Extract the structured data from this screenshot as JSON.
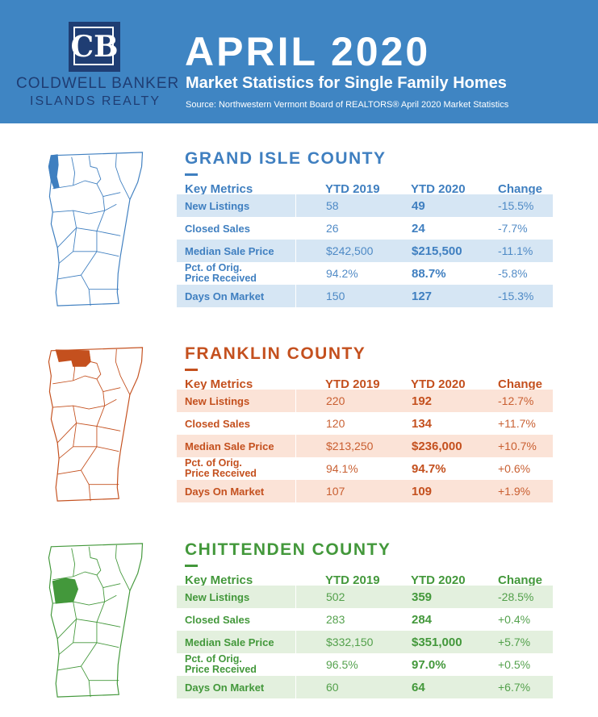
{
  "brand": {
    "monogram": "CB",
    "name_line1": "COLDWELL BANKER",
    "name_line2": "ISLANDS REALTY",
    "navy": "#1f3d73"
  },
  "header": {
    "title": "APRIL 2020",
    "subtitle": "Market Statistics for Single Family Homes",
    "source": "Source: Northwestern Vermont Board of REALTORS® April 2020 Market Statistics",
    "bg_color": "#3f85c3"
  },
  "table_headers": {
    "metric": "Key Metrics",
    "ytd2019": "YTD 2019",
    "ytd2020": "YTD 2020",
    "change": "Change"
  },
  "counties": [
    {
      "name": "GRAND ISLE COUNTY",
      "color": "#3f7fc0",
      "row_bg": "#d6e6f4",
      "map_icon": "vermont-map-grand-isle-highlighted",
      "rows": [
        {
          "label": "New Listings",
          "y2019": "58",
          "y2020": "49",
          "change": "-15.5%"
        },
        {
          "label": "Closed Sales",
          "y2019": "26",
          "y2020": "24",
          "change": "-7.7%"
        },
        {
          "label": "Median Sale Price",
          "y2019": "$242,500",
          "y2020": "$215,500",
          "change": "-11.1%"
        },
        {
          "label": "Pct. of Orig.",
          "label2": "Price Received",
          "y2019": "94.2%",
          "y2020": "88.7%",
          "change": "-5.8%"
        },
        {
          "label": "Days On Market",
          "y2019": "150",
          "y2020": "127",
          "change": "-15.3%"
        }
      ]
    },
    {
      "name": "FRANKLIN COUNTY",
      "color": "#c4501e",
      "row_bg": "#fbe3d7",
      "map_icon": "vermont-map-franklin-highlighted",
      "rows": [
        {
          "label": "New Listings",
          "y2019": "220",
          "y2020": "192",
          "change": "-12.7%"
        },
        {
          "label": "Closed Sales",
          "y2019": "120",
          "y2020": "134",
          "change": "+11.7%"
        },
        {
          "label": "Median Sale Price",
          "y2019": "$213,250",
          "y2020": "$236,000",
          "change": "+10.7%"
        },
        {
          "label": "Pct. of Orig.",
          "label2": "Price Received",
          "y2019": "94.1%",
          "y2020": "94.7%",
          "change": "+0.6%"
        },
        {
          "label": "Days On Market",
          "y2019": "107",
          "y2020": "109",
          "change": "+1.9%"
        }
      ]
    },
    {
      "name": "CHITTENDEN COUNTY",
      "color": "#43983b",
      "row_bg": "#e3f0de",
      "map_icon": "vermont-map-chittenden-highlighted",
      "rows": [
        {
          "label": "New Listings",
          "y2019": "502",
          "y2020": "359",
          "change": "-28.5%"
        },
        {
          "label": "Closed Sales",
          "y2019": "283",
          "y2020": "284",
          "change": "+0.4%"
        },
        {
          "label": "Median Sale Price",
          "y2019": "$332,150",
          "y2020": "$351,000",
          "change": "+5.7%"
        },
        {
          "label": "Pct. of Orig.",
          "label2": "Price Received",
          "y2019": "96.5%",
          "y2020": "97.0%",
          "change": "+0.5%"
        },
        {
          "label": "Days On Market",
          "y2019": "60",
          "y2020": "64",
          "change": "+6.7%"
        }
      ]
    }
  ]
}
